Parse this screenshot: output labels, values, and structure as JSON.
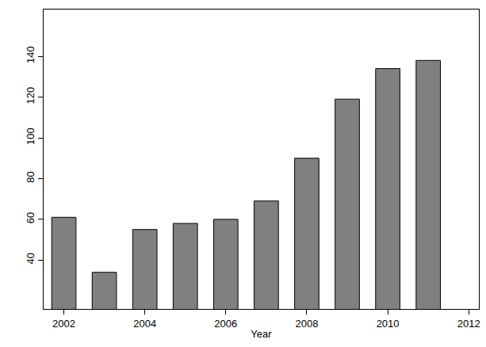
{
  "chart_data": {
    "type": "bar",
    "x_label": "Year",
    "x": [
      2002,
      2003,
      2004,
      2005,
      2006,
      2007,
      2008,
      2009,
      2010,
      2011
    ],
    "values": [
      61,
      34,
      55,
      58,
      60,
      69,
      90,
      119,
      134,
      138
    ],
    "color": "#808080",
    "xlim": [
      2001.5,
      2012.25
    ],
    "xticks": [
      2002,
      2004,
      2006,
      2008,
      2010,
      2012
    ],
    "ylim": [
      16,
      163
    ],
    "yticks": [
      40,
      60,
      80,
      100,
      120,
      140
    ],
    "grid": false
  }
}
